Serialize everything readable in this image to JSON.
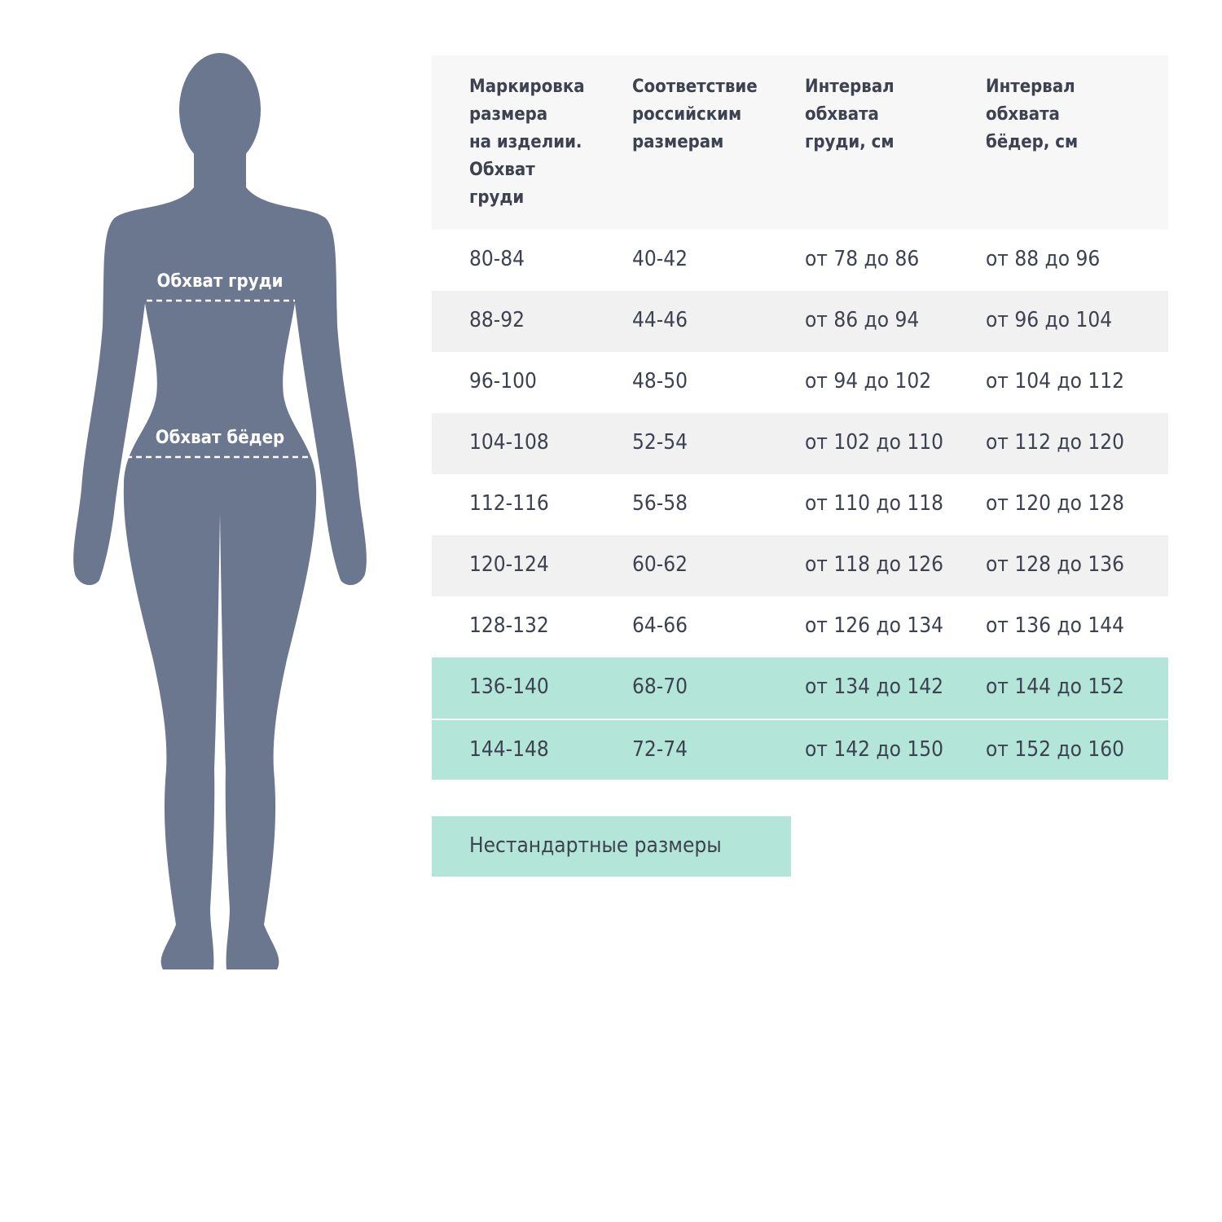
{
  "figure": {
    "chest_label": "Обхват груди",
    "hips_label": "Обхват бёдер",
    "silhouette_color": "#6b778e"
  },
  "table": {
    "headers": [
      "Маркировка\nразмера\nна изделии.\nОбхват\nгруди",
      "Соответствие\nроссийским\nразмерам",
      "Интервал\nобхвата\nгруди, см",
      "Интервал\nобхвата\nбёдер, см"
    ],
    "rows": [
      [
        "80-84",
        "40-42",
        "от 78 до 86",
        "от 88 до 96"
      ],
      [
        "88-92",
        "44-46",
        "от 86 до 94",
        "от 96 до 104"
      ],
      [
        "96-100",
        "48-50",
        "от 94 до 102",
        "от 104 до 112"
      ],
      [
        "104-108",
        "52-54",
        "от 102 до 110",
        "от 112 до 120"
      ],
      [
        "112-116",
        "56-58",
        "от 110 до 118",
        "от 120 до 128"
      ],
      [
        "120-124",
        "60-62",
        "от 118 до 126",
        "от 128 до 136"
      ],
      [
        "128-132",
        "64-66",
        "от 126 до 134",
        "от 136 до 144"
      ],
      [
        "136-140",
        "68-70",
        "от 134 до 142",
        "от 144 до 152"
      ],
      [
        "144-148",
        "72-74",
        "от 142 до 150",
        "от 152 до 160"
      ]
    ],
    "highlight_color": "#b3e6d8"
  },
  "legend": {
    "nonstandard_label": "Нестандартные размеры"
  }
}
